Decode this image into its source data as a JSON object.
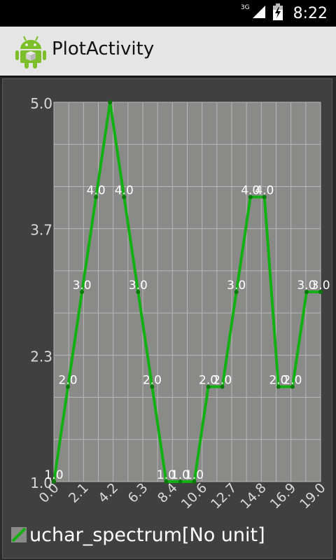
{
  "status_bar": {
    "network_label": "3G",
    "time": "8:22",
    "icons": [
      "signal-icon",
      "battery-icon"
    ]
  },
  "action_bar": {
    "title": "PlotActivity",
    "icon": "android-robot-icon"
  },
  "colors": {
    "series_line": "#12b012",
    "plot_background": "#8a8a88",
    "frame_background": "#404040",
    "grid": "#b8b8b8"
  },
  "chart_data": {
    "type": "line",
    "x_ticks": [
      "0.0",
      "2.1",
      "4.2",
      "6.3",
      "8.4",
      "10.6",
      "12.7",
      "14.8",
      "16.9",
      "19.0"
    ],
    "y_ticks": [
      "1.0",
      "2.3",
      "3.7",
      "5.0"
    ],
    "xlim": [
      0,
      19
    ],
    "ylim": [
      1,
      5
    ],
    "grid": true,
    "legend_position": "bottom-left",
    "series": [
      {
        "name": "uchar_spectrum[No unit]",
        "x": [
          0,
          1,
          2,
          3,
          4,
          5,
          6,
          7,
          8,
          9,
          10,
          11,
          12,
          13,
          14,
          15,
          16,
          17,
          18,
          19
        ],
        "values": [
          1,
          2,
          3,
          4,
          5,
          4,
          3,
          2,
          1,
          1,
          1,
          2,
          2,
          3,
          4,
          4,
          2,
          2,
          3,
          3
        ],
        "labels": [
          "1.0",
          "2.0",
          "3.0",
          "4.0",
          "",
          "4.0",
          "3.0",
          "2.0",
          "1.0",
          "1.0",
          "1.0",
          "2.0",
          "2.0",
          "3.0",
          "4.0",
          "4.0",
          "2.0",
          "2.0",
          "3.0",
          "3.0"
        ]
      }
    ]
  }
}
